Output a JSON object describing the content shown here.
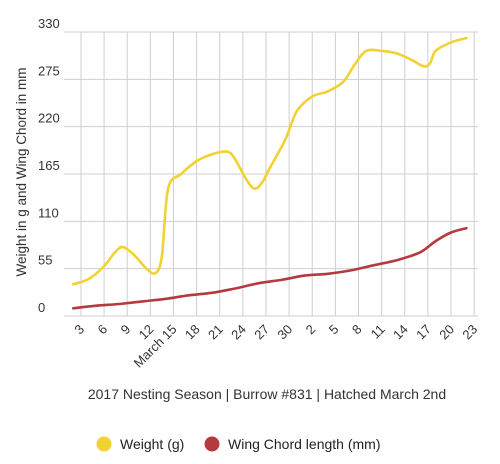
{
  "chart_data": {
    "type": "line",
    "xlabel": "2017 Nesting Season | Burrow #831 | Hatched March 2nd",
    "ylabel": "Weight in g and Wing Chord in mm",
    "ylim": [
      0,
      330
    ],
    "yticks": [
      0,
      55,
      110,
      165,
      220,
      275,
      330
    ],
    "grid": "vertical and horizontal",
    "legend_position": "bottom",
    "x_tick_labels": [
      "3",
      "6",
      "9",
      "12",
      "March 15",
      "18",
      "21",
      "24",
      "27",
      "30",
      "2",
      "5",
      "8",
      "11",
      "14",
      "17",
      "20",
      "23"
    ],
    "x_tick_days": [
      3,
      6,
      9,
      12,
      15,
      18,
      21,
      24,
      27,
      30,
      33,
      36,
      39,
      42,
      45,
      48,
      51,
      54
    ],
    "xlim": [
      0.8,
      54.5
    ],
    "series": [
      {
        "name": "Weight (g)",
        "color": "#f2d233",
        "points": [
          [
            2,
            37
          ],
          [
            4,
            43
          ],
          [
            6,
            58
          ],
          [
            7.5,
            75
          ],
          [
            8.5,
            80
          ],
          [
            10,
            70
          ],
          [
            11.5,
            55
          ],
          [
            12.7,
            50
          ],
          [
            13.5,
            70
          ],
          [
            14.3,
            148
          ],
          [
            16,
            165
          ],
          [
            18,
            180
          ],
          [
            20,
            188
          ],
          [
            22,
            191
          ],
          [
            23,
            182
          ],
          [
            24.5,
            158
          ],
          [
            25.5,
            148
          ],
          [
            26.5,
            155
          ],
          [
            27.5,
            172
          ],
          [
            29.5,
            205
          ],
          [
            31,
            238
          ],
          [
            33,
            255
          ],
          [
            35,
            261
          ],
          [
            37,
            272
          ],
          [
            38.5,
            292
          ],
          [
            40,
            308
          ],
          [
            42,
            308
          ],
          [
            44,
            305
          ],
          [
            46,
            297
          ],
          [
            47.5,
            290
          ],
          [
            48.3,
            294
          ],
          [
            49,
            308
          ],
          [
            51,
            318
          ],
          [
            53,
            323
          ]
        ]
      },
      {
        "name": "Wing Chord length (mm)",
        "color": "#b53a3e",
        "points": [
          [
            2,
            9
          ],
          [
            5,
            12
          ],
          [
            8,
            14
          ],
          [
            11,
            17
          ],
          [
            14,
            20
          ],
          [
            17,
            24
          ],
          [
            20,
            27
          ],
          [
            23,
            32
          ],
          [
            26,
            38
          ],
          [
            29,
            42
          ],
          [
            32,
            47
          ],
          [
            35,
            49
          ],
          [
            38,
            53
          ],
          [
            41,
            59
          ],
          [
            44,
            65
          ],
          [
            47,
            74
          ],
          [
            49,
            87
          ],
          [
            51,
            97
          ],
          [
            53,
            102
          ]
        ]
      }
    ]
  }
}
